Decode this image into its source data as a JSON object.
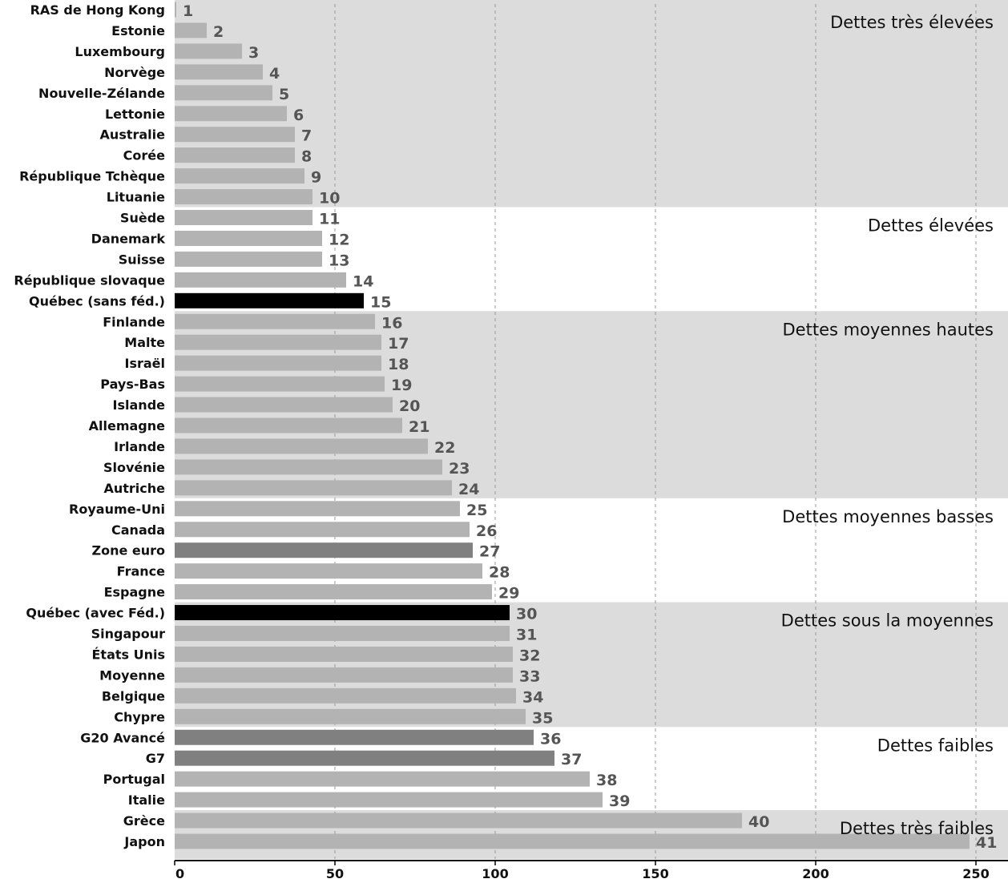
{
  "chart_data": {
    "type": "bar",
    "orientation": "horizontal",
    "xlim": [
      0,
      260
    ],
    "xticks": [
      0,
      50,
      100,
      150,
      200,
      250
    ],
    "grid": "vertical dashed",
    "colors": {
      "default": "#b3b3b3",
      "quebec": "#000000",
      "aggregate": "#808080",
      "band_shade": "#dcdcdc",
      "grid": "#999999",
      "rank_text": "#555555"
    },
    "bars": [
      {
        "category": "RAS de Hong Kong",
        "value": 0.5,
        "rank": "1",
        "kind": "default"
      },
      {
        "category": "Estonie",
        "value": 10,
        "rank": "2",
        "kind": "default"
      },
      {
        "category": "Luxembourg",
        "value": 21,
        "rank": "3",
        "kind": "default"
      },
      {
        "category": "Norvège",
        "value": 27.5,
        "rank": "4",
        "kind": "default"
      },
      {
        "category": "Nouvelle-Zélande",
        "value": 30.5,
        "rank": "5",
        "kind": "default"
      },
      {
        "category": "Lettonie",
        "value": 35,
        "rank": "6",
        "kind": "default"
      },
      {
        "category": "Australie",
        "value": 37.5,
        "rank": "7",
        "kind": "default"
      },
      {
        "category": "Corée",
        "value": 37.5,
        "rank": "8",
        "kind": "default"
      },
      {
        "category": "République Tchèque",
        "value": 40.5,
        "rank": "9",
        "kind": "default"
      },
      {
        "category": "Lituanie",
        "value": 43,
        "rank": "10",
        "kind": "default"
      },
      {
        "category": "Suède",
        "value": 43,
        "rank": "11",
        "kind": "default"
      },
      {
        "category": "Danemark",
        "value": 46,
        "rank": "12",
        "kind": "default"
      },
      {
        "category": "Suisse",
        "value": 46,
        "rank": "13",
        "kind": "default"
      },
      {
        "category": "République slovaque",
        "value": 53.5,
        "rank": "14",
        "kind": "default"
      },
      {
        "category": "Québec (sans féd.)",
        "value": 59,
        "rank": "15",
        "kind": "quebec"
      },
      {
        "category": "Finlande",
        "value": 62.5,
        "rank": "16",
        "kind": "default"
      },
      {
        "category": "Malte",
        "value": 64.5,
        "rank": "17",
        "kind": "default"
      },
      {
        "category": "Israël",
        "value": 64.5,
        "rank": "18",
        "kind": "default"
      },
      {
        "category": "Pays-Bas",
        "value": 65.5,
        "rank": "19",
        "kind": "default"
      },
      {
        "category": "Islande",
        "value": 68,
        "rank": "20",
        "kind": "default"
      },
      {
        "category": "Allemagne",
        "value": 71,
        "rank": "21",
        "kind": "default"
      },
      {
        "category": "Irlande",
        "value": 79,
        "rank": "22",
        "kind": "default"
      },
      {
        "category": "Slovénie",
        "value": 83.5,
        "rank": "23",
        "kind": "default"
      },
      {
        "category": "Autriche",
        "value": 86.5,
        "rank": "24",
        "kind": "default"
      },
      {
        "category": "Royaume-Uni",
        "value": 89,
        "rank": "25",
        "kind": "default"
      },
      {
        "category": "Canada",
        "value": 92,
        "rank": "26",
        "kind": "default"
      },
      {
        "category": "Zone euro",
        "value": 93,
        "rank": "27",
        "kind": "aggregate"
      },
      {
        "category": "France",
        "value": 96,
        "rank": "28",
        "kind": "default"
      },
      {
        "category": "Espagne",
        "value": 99,
        "rank": "29",
        "kind": "default"
      },
      {
        "category": "Québec (avec Féd.)",
        "value": 104.5,
        "rank": "30",
        "kind": "quebec"
      },
      {
        "category": "Singapour",
        "value": 104.5,
        "rank": "31",
        "kind": "default"
      },
      {
        "category": "États Unis",
        "value": 105.5,
        "rank": "32",
        "kind": "default"
      },
      {
        "category": "Moyenne",
        "value": 105.5,
        "rank": "33",
        "kind": "default"
      },
      {
        "category": "Belgique",
        "value": 106.5,
        "rank": "34",
        "kind": "default"
      },
      {
        "category": "Chypre",
        "value": 109.5,
        "rank": "35",
        "kind": "default"
      },
      {
        "category": "G20 Avancé",
        "value": 112,
        "rank": "36",
        "kind": "aggregate"
      },
      {
        "category": "G7",
        "value": 118.5,
        "rank": "37",
        "kind": "aggregate"
      },
      {
        "category": "Portugal",
        "value": 129.5,
        "rank": "38",
        "kind": "default"
      },
      {
        "category": "Italie",
        "value": 133.5,
        "rank": "39",
        "kind": "default"
      },
      {
        "category": "Grèce",
        "value": 177,
        "rank": "40",
        "kind": "default"
      },
      {
        "category": "Japon",
        "value": 248,
        "rank": "41",
        "kind": "default"
      }
    ],
    "bands": [
      {
        "label": "Dettes très élevées",
        "from": 0,
        "to": 9,
        "shaded": true
      },
      {
        "label": "Dettes élevées",
        "from": 10,
        "to": 14,
        "shaded": false
      },
      {
        "label": "Dettes moyennes hautes",
        "from": 15,
        "to": 23,
        "shaded": true
      },
      {
        "label": "Dettes moyennes basses",
        "from": 24,
        "to": 28,
        "shaded": false
      },
      {
        "label": "Dettes sous la moyennes",
        "from": 29,
        "to": 34,
        "shaded": true
      },
      {
        "label": "Dettes faibles",
        "from": 35,
        "to": 38,
        "shaded": false
      },
      {
        "label": "Dettes très faibles",
        "from": 39,
        "to": 40,
        "shaded": true
      }
    ]
  }
}
